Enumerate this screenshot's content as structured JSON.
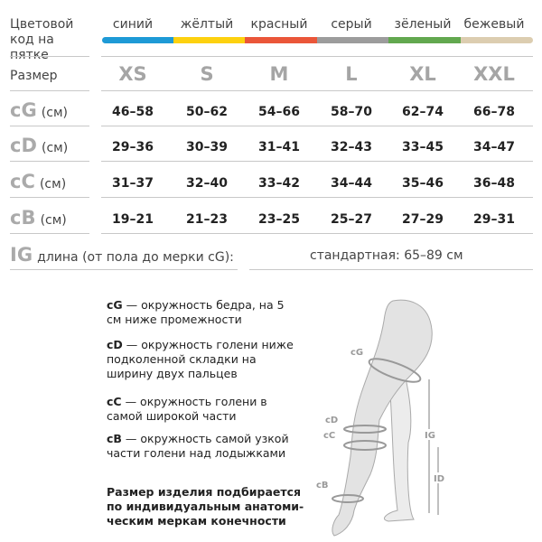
{
  "table": {
    "color_code_label": "Цветовой код на пятке",
    "size_label": "Размер",
    "columns": [
      {
        "color_name": "синий",
        "color": "#1e9ad6",
        "size": "XS"
      },
      {
        "color_name": "жёлтый",
        "color": "#fdd10f",
        "size": "S"
      },
      {
        "color_name": "красный",
        "color": "#ea5639",
        "size": "M"
      },
      {
        "color_name": "серый",
        "color": "#9c9c9c",
        "size": "L"
      },
      {
        "color_name": "зёленый",
        "color": "#62a84f",
        "size": "XL"
      },
      {
        "color_name": "бежевый",
        "color": "#dccdb0",
        "size": "XXL"
      }
    ],
    "rows": [
      {
        "code": "cG",
        "unit": "(см)",
        "values": [
          "46–58",
          "50–62",
          "54–66",
          "58–70",
          "62–74",
          "66–78"
        ]
      },
      {
        "code": "cD",
        "unit": "(см)",
        "values": [
          "29–36",
          "30–39",
          "31–41",
          "32–43",
          "33–45",
          "34–47"
        ]
      },
      {
        "code": "cC",
        "unit": "(см)",
        "values": [
          "31–37",
          "32–40",
          "33–42",
          "34–44",
          "35–46",
          "36–48"
        ]
      },
      {
        "code": "cB",
        "unit": "(см)",
        "values": [
          "19–21",
          "21–23",
          "23–25",
          "25–27",
          "27–29",
          "29–31"
        ]
      }
    ],
    "length_row": {
      "code": "IG",
      "label": "длина (от пола до мерки cG):",
      "value": "стандартная: 65–89 см"
    }
  },
  "legend": [
    {
      "code": "cG",
      "text": " — окружность бедра, на 5 см ниже промежности"
    },
    {
      "code": "cD",
      "text": " — окружность голени ниже подколенной складки на ширину двух пальцев"
    },
    {
      "code": "cC",
      "text": " — окружность голени в самой широкой части"
    },
    {
      "code": "cB",
      "text": " — окружность самой узкой части голени над лодыжками"
    }
  ],
  "note": "Размер изделия подбирается по индивидуальным анатоми-ческим меркам конечности",
  "diagram_labels": {
    "cG": "cG",
    "cD": "cD",
    "cC": "cC",
    "cB": "cB",
    "IG": "IG",
    "ID": "ID"
  }
}
